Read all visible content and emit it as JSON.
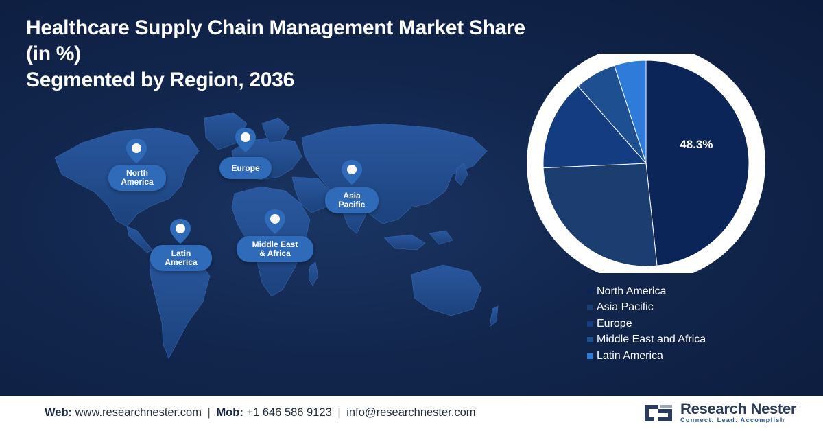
{
  "title": {
    "line1": "Healthcare Supply Chain Management Market Share (in %)",
    "line2": "Segmented by Region, 2036"
  },
  "map_labels": {
    "north_america": [
      "North",
      "America"
    ],
    "europe": [
      "Europe"
    ],
    "asia_pacific": [
      "Asia",
      "Pacific"
    ],
    "latin_america": [
      "Latin",
      "America"
    ],
    "middle_east_africa": [
      "Middle East",
      "& Africa"
    ]
  },
  "chart_data": {
    "type": "pie",
    "labels": [
      "North America",
      "Asia Pacific",
      "Europe",
      "Middle East and Africa",
      "Latin America"
    ],
    "values": [
      48.3,
      26.0,
      14.2,
      6.5,
      5.0
    ],
    "colors": [
      "#0c2559",
      "#1b3d6f",
      "#133d80",
      "#1d4f91",
      "#2e7bd9"
    ],
    "data_labels": [
      "48.3%",
      "",
      "",
      "",
      ""
    ],
    "legend_position": "bottom-right"
  },
  "footer": {
    "web_label": "Web:",
    "web_value": "www.researchnester.com",
    "mob_label": "Mob:",
    "mob_value": "+1 646 586 9123",
    "email_value": "info@researchnester.com",
    "separator": "|"
  },
  "logo": {
    "name": "Research Nester",
    "tagline": "Connect. Lead. Accomplish"
  }
}
